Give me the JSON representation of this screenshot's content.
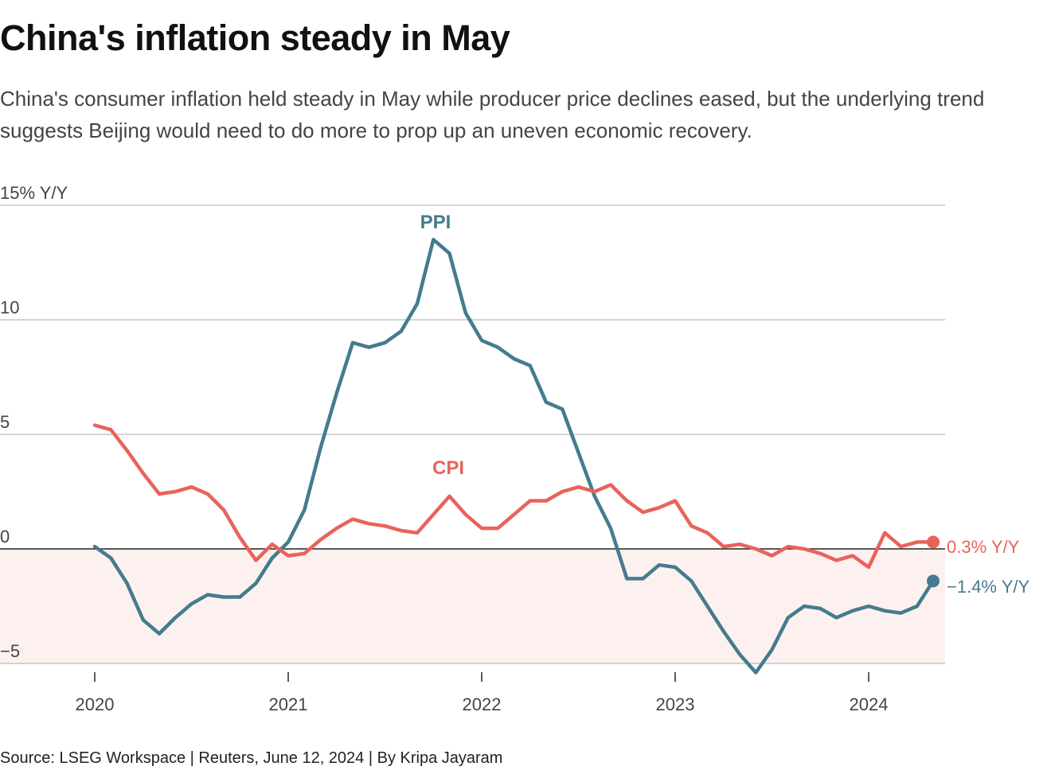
{
  "header": {
    "title": "China's inflation steady in May",
    "subtitle": "China's consumer inflation held steady in May while producer price declines eased, but the underlying trend suggests Beijing would need to do more to prop up an uneven economic recovery."
  },
  "footer": {
    "source": "Source: LSEG Workspace | Reuters, June 12, 2024 | By Kripa Jayaram"
  },
  "chart_data": {
    "type": "line",
    "ylim": [
      -5,
      15
    ],
    "yticks": [
      {
        "value": 15,
        "label": "15% Y/Y"
      },
      {
        "value": 10,
        "label": "10"
      },
      {
        "value": 5,
        "label": "5"
      },
      {
        "value": 0,
        "label": "0"
      },
      {
        "value": -5,
        "label": "−5"
      }
    ],
    "xticks": [
      {
        "label": "2020"
      },
      {
        "label": "2021"
      },
      {
        "label": "2022"
      },
      {
        "label": "2023"
      },
      {
        "label": "2024"
      }
    ],
    "x_start": "2020-01",
    "x_end": "2024-05",
    "grid": true,
    "negative_shading": true,
    "colors": {
      "ppi": "#457b8e",
      "cpi": "#e8635b",
      "shade": "#fdf1ef",
      "grid": "#bbbbbb",
      "zero": "#222222"
    },
    "series": [
      {
        "name": "PPI",
        "key": "ppi",
        "label_value": "−1.4% Y/Y",
        "values": [
          0.1,
          -0.4,
          -1.5,
          -3.1,
          -3.7,
          -3.0,
          -2.4,
          -2.0,
          -2.1,
          -2.1,
          -1.5,
          -0.4,
          0.3,
          1.7,
          4.4,
          6.8,
          9.0,
          8.8,
          9.0,
          9.5,
          10.7,
          13.5,
          12.9,
          10.3,
          9.1,
          8.8,
          8.3,
          8.0,
          6.4,
          6.1,
          4.2,
          2.3,
          0.9,
          -1.3,
          -1.3,
          -0.7,
          -0.8,
          -1.4,
          -2.5,
          -3.6,
          -4.6,
          -5.4,
          -4.4,
          -3.0,
          -2.5,
          -2.6,
          -3.0,
          -2.7,
          -2.5,
          -2.7,
          -2.8,
          -2.5,
          -1.4
        ]
      },
      {
        "name": "CPI",
        "key": "cpi",
        "label_value": "0.3% Y/Y",
        "values": [
          5.4,
          5.2,
          4.3,
          3.3,
          2.4,
          2.5,
          2.7,
          2.4,
          1.7,
          0.5,
          -0.5,
          0.2,
          -0.3,
          -0.2,
          0.4,
          0.9,
          1.3,
          1.1,
          1.0,
          0.8,
          0.7,
          1.5,
          2.3,
          1.5,
          0.9,
          0.9,
          1.5,
          2.1,
          2.1,
          2.5,
          2.7,
          2.5,
          2.8,
          2.1,
          1.6,
          1.8,
          2.1,
          1.0,
          0.7,
          0.1,
          0.2,
          0.0,
          -0.3,
          0.1,
          0.0,
          -0.2,
          -0.5,
          -0.3,
          -0.8,
          0.7,
          0.1,
          0.3,
          0.3
        ]
      }
    ]
  }
}
